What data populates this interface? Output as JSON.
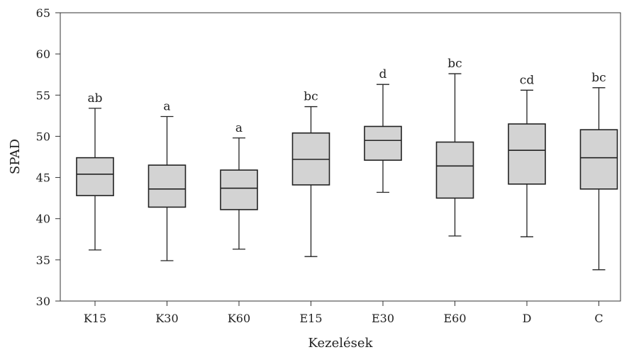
{
  "chart_data": {
    "type": "boxplot",
    "xlabel": "Kezelések",
    "ylabel": "SPAD",
    "ylim": [
      30,
      65
    ],
    "yticks": [
      30,
      35,
      40,
      45,
      50,
      55,
      60,
      65
    ],
    "grid": false,
    "box_fill": "#d3d3d3",
    "categories": [
      "K15",
      "K30",
      "K60",
      "E15",
      "E30",
      "E60",
      "D",
      "C"
    ],
    "boxes": [
      {
        "category": "K15",
        "min": 36.2,
        "q1": 42.8,
        "median": 45.4,
        "q3": 47.4,
        "max": 53.4,
        "letter": "ab"
      },
      {
        "category": "K30",
        "min": 34.9,
        "q1": 41.4,
        "median": 43.6,
        "q3": 46.5,
        "max": 52.4,
        "letter": "a"
      },
      {
        "category": "K60",
        "min": 36.3,
        "q1": 41.1,
        "median": 43.7,
        "q3": 45.9,
        "max": 49.8,
        "letter": "a"
      },
      {
        "category": "E15",
        "min": 35.4,
        "q1": 44.1,
        "median": 47.2,
        "q3": 50.4,
        "max": 53.6,
        "letter": "bc"
      },
      {
        "category": "E30",
        "min": 43.2,
        "q1": 47.1,
        "median": 49.5,
        "q3": 51.2,
        "max": 56.3,
        "letter": "d"
      },
      {
        "category": "E60",
        "min": 37.9,
        "q1": 42.5,
        "median": 46.4,
        "q3": 49.3,
        "max": 57.6,
        "letter": "bc"
      },
      {
        "category": "D",
        "min": 37.8,
        "q1": 44.2,
        "median": 48.3,
        "q3": 51.5,
        "max": 55.6,
        "letter": "cd"
      },
      {
        "category": "C",
        "min": 33.8,
        "q1": 43.6,
        "median": 47.4,
        "q3": 50.8,
        "max": 55.9,
        "letter": "bc"
      }
    ]
  }
}
